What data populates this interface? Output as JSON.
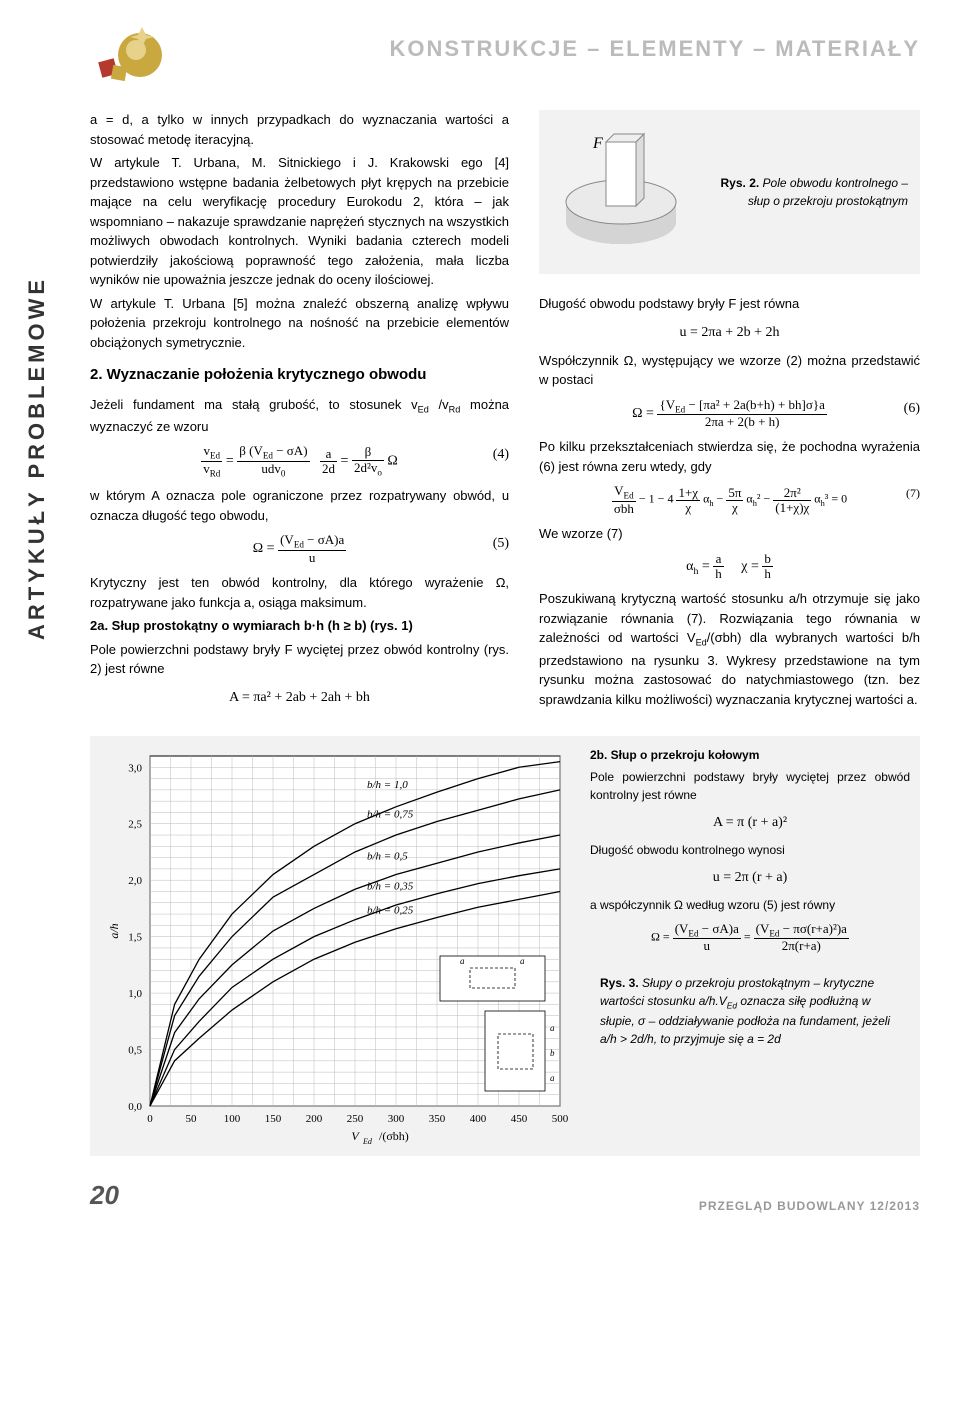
{
  "header": {
    "section_title": "KONSTRUKCJE – ELEMENTY – MATERIAŁY",
    "vertical_label": "ARTYKUŁY PROBLEMOWE"
  },
  "left_col": {
    "p1": "a = d, a tylko w innych przypadkach do wyznaczania wartości a stosować metodę iteracyjną.",
    "p2": "W artykule T. Urbana, M. Sitnickiego i J. Krakowski ego [4] przedstawiono wstępne badania żelbetowych płyt krępych na przebicie mające na celu weryfikację procedury Eurokodu 2, która – jak wspomniano – nakazuje sprawdzanie naprężeń stycznych na wszystkich możliwych obwodach kontrolnych. Wyniki badania czterech modeli potwierdziły jakościową poprawność tego założenia, mała liczba wyników nie upoważnia jeszcze jednak do oceny ilościowej.",
    "p3": "W artykule T. Urbana [5] można znaleźć obszerną analizę wpływu położenia przekroju kontrolnego na nośność na przebicie elementów obciążonych symetrycznie.",
    "h2": "2.  Wyznaczanie położenia krytycznego obwodu",
    "p4": "Jeżeli fundament ma stałą grubość, to stosunek v",
    "p4_sub1": "Ed",
    "p4_mid": " /v",
    "p4_sub2": "Rd",
    "p4_end": " można wyznaczyć ze wzoru",
    "eq4_num": "(4)",
    "p5": "w którym A oznacza pole ograniczone przez rozpatrywany obwód, u oznacza długość tego obwodu,",
    "eq5_num": "(5)",
    "p6": "Krytyczny jest ten obwód kontrolny, dla którego wyrażenie Ω, rozpatrywane jako funkcja a, osiąga maksimum.",
    "h2a": "2a. Słup prostokątny o wymiarach b·h (h ≥ b) (rys. 1)",
    "p7": "Pole powierzchni podstawy bryły F wyciętej przez obwód kontrolny (rys. 2) jest równe",
    "eqA": "A = πa² + 2ab + 2ah + bh"
  },
  "right_col": {
    "fig2_label": "F",
    "fig2_caption_b": "Rys. 2.",
    "fig2_caption": " Pole obwodu kontrolnego – słup o przekroju prostokątnym",
    "p1": "Długość obwodu podstawy bryły F jest równa",
    "eq_u": "u = 2πa + 2b + 2h",
    "p2": "Współczynnik Ω, występujący we wzorze (2) można przedstawić w postaci",
    "eq6_num": "(6)",
    "p3": "Po kilku przekształceniach stwierdza się, że pochodna wyrażenia (6) jest równa zeru wtedy, gdy",
    "eq7_num": "(7)",
    "p4": "We wzorze (7)",
    "p5": "Poszukiwaną krytyczną wartość stosunku a/h otrzymuje się jako rozwiązanie równania (7). Rozwiązania tego równania w zależności od wartości V",
    "p5_sub": "Ed",
    "p5_b": "/(σbh) dla wybranych wartości b/h przedstawiono na rysunku 3. Wykresy przedstawione na tym rysunku można zastosować do natychmiastowego (tzn. bez sprawdzania kilku możliwości) wyznaczania krytycznej wartości a.",
    "h2b": "2b. Słup o przekroju kołowym",
    "p6": "Pole powierzchni podstawy bryły wyciętej przez obwód kontrolny jest równe",
    "eq_A2": "A = π (r + a)²",
    "p7": "Długość obwodu kontrolnego wynosi",
    "eq_u2": "u = 2π (r + a)",
    "p8": "a współczynnik Ω według wzoru (5) jest równy",
    "rys3_b": "Rys. 3.",
    "rys3": " Słupy o przekroju prostokątnym – krytyczne wartości stosunku a/h.V",
    "rys3_sub": "Ed",
    "rys3_b2": " oznacza siłę podłużną w słupie, σ – oddziaływanie podłoża na fundament, jeżeli a/h > 2d/h, to przyjmuje się a = 2d"
  },
  "chart": {
    "y_label": "a/h",
    "x_label": "V_Ed /(σbh)",
    "y_ticks": [
      "0,0",
      "0,5",
      "1,0",
      "1,5",
      "2,0",
      "2,5",
      "3,0"
    ],
    "x_ticks": [
      "0",
      "50",
      "100",
      "150",
      "200",
      "250",
      "300",
      "350",
      "400",
      "450",
      "500"
    ],
    "curve_labels": [
      "b/h = 1,0",
      "b/h = 0,75",
      "b/h = 0,5",
      "b/h = 0,35",
      "b/h = 0,25"
    ],
    "curves": {
      "bg": "#f2f2f2",
      "grid_color": "#bbbbbb",
      "line_color": "#000000",
      "data_1_0": [
        [
          0,
          0
        ],
        [
          30,
          0.9
        ],
        [
          60,
          1.3
        ],
        [
          100,
          1.7
        ],
        [
          150,
          2.05
        ],
        [
          200,
          2.3
        ],
        [
          250,
          2.5
        ],
        [
          300,
          2.65
        ],
        [
          350,
          2.78
        ],
        [
          400,
          2.9
        ],
        [
          450,
          3.0
        ],
        [
          500,
          3.05
        ]
      ],
      "data_0_75": [
        [
          0,
          0
        ],
        [
          30,
          0.8
        ],
        [
          60,
          1.15
        ],
        [
          100,
          1.5
        ],
        [
          150,
          1.85
        ],
        [
          200,
          2.05
        ],
        [
          250,
          2.25
        ],
        [
          300,
          2.4
        ],
        [
          350,
          2.52
        ],
        [
          400,
          2.62
        ],
        [
          450,
          2.72
        ],
        [
          500,
          2.8
        ]
      ],
      "data_0_5": [
        [
          0,
          0
        ],
        [
          30,
          0.65
        ],
        [
          60,
          0.95
        ],
        [
          100,
          1.25
        ],
        [
          150,
          1.55
        ],
        [
          200,
          1.75
        ],
        [
          250,
          1.92
        ],
        [
          300,
          2.05
        ],
        [
          350,
          2.15
        ],
        [
          400,
          2.25
        ],
        [
          450,
          2.33
        ],
        [
          500,
          2.4
        ]
      ],
      "data_0_35": [
        [
          0,
          0
        ],
        [
          30,
          0.5
        ],
        [
          60,
          0.75
        ],
        [
          100,
          1.05
        ],
        [
          150,
          1.3
        ],
        [
          200,
          1.5
        ],
        [
          250,
          1.65
        ],
        [
          300,
          1.78
        ],
        [
          350,
          1.88
        ],
        [
          400,
          1.97
        ],
        [
          450,
          2.04
        ],
        [
          500,
          2.1
        ]
      ],
      "data_0_25": [
        [
          0,
          0
        ],
        [
          30,
          0.4
        ],
        [
          60,
          0.6
        ],
        [
          100,
          0.85
        ],
        [
          150,
          1.1
        ],
        [
          200,
          1.3
        ],
        [
          250,
          1.45
        ],
        [
          300,
          1.57
        ],
        [
          350,
          1.67
        ],
        [
          400,
          1.76
        ],
        [
          450,
          1.83
        ],
        [
          500,
          1.9
        ]
      ]
    }
  },
  "footer": {
    "page": "20",
    "pub": "PRZEGLĄD BUDOWLANY 12/2013"
  },
  "colors": {
    "header_grey": "#bbbbbb",
    "box_bg": "#f2f2f2",
    "ornament_gold": "#c9a83f",
    "ornament_gold2": "#e6d28a",
    "ornament_red": "#b53a2e"
  }
}
